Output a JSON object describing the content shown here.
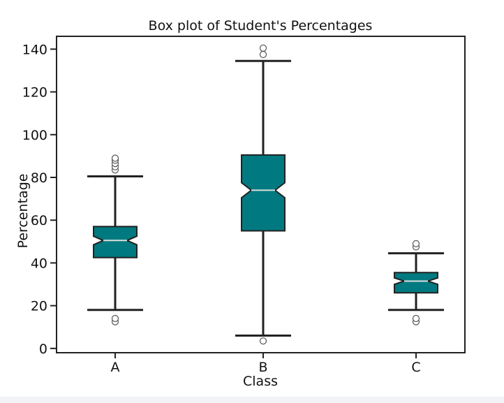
{
  "chart_data": {
    "type": "boxplot",
    "title": "Box plot of Student's Percentages",
    "xlabel": "Class",
    "ylabel": "Percentage",
    "categories": [
      "A",
      "B",
      "C"
    ],
    "ylim": [
      -2,
      146
    ],
    "yticks": [
      0,
      20,
      40,
      60,
      80,
      100,
      120,
      140
    ],
    "notched": true,
    "grid": false,
    "box_color": "#007a80",
    "line_color": "#222222",
    "boxes": [
      {
        "category": "A",
        "whisker_low": 18,
        "q1": 42.5,
        "median": 50.5,
        "q3": 57,
        "whisker_high": 80.5,
        "notch_low": 48.5,
        "notch_high": 52.5,
        "outliers": [
          12.5,
          14,
          83.5,
          85,
          86.5,
          88,
          89
        ]
      },
      {
        "category": "B",
        "whisker_low": 6,
        "q1": 55,
        "median": 74,
        "q3": 90.5,
        "whisker_high": 134.5,
        "notch_low": 70.5,
        "notch_high": 77.5,
        "outliers": [
          3.5,
          137.5,
          140.5
        ]
      },
      {
        "category": "C",
        "whisker_low": 18,
        "q1": 26,
        "median": 31.5,
        "q3": 35.5,
        "whisker_high": 44.5,
        "notch_low": 30,
        "notch_high": 33,
        "outliers": [
          12.5,
          14,
          47.5,
          49
        ]
      }
    ]
  }
}
